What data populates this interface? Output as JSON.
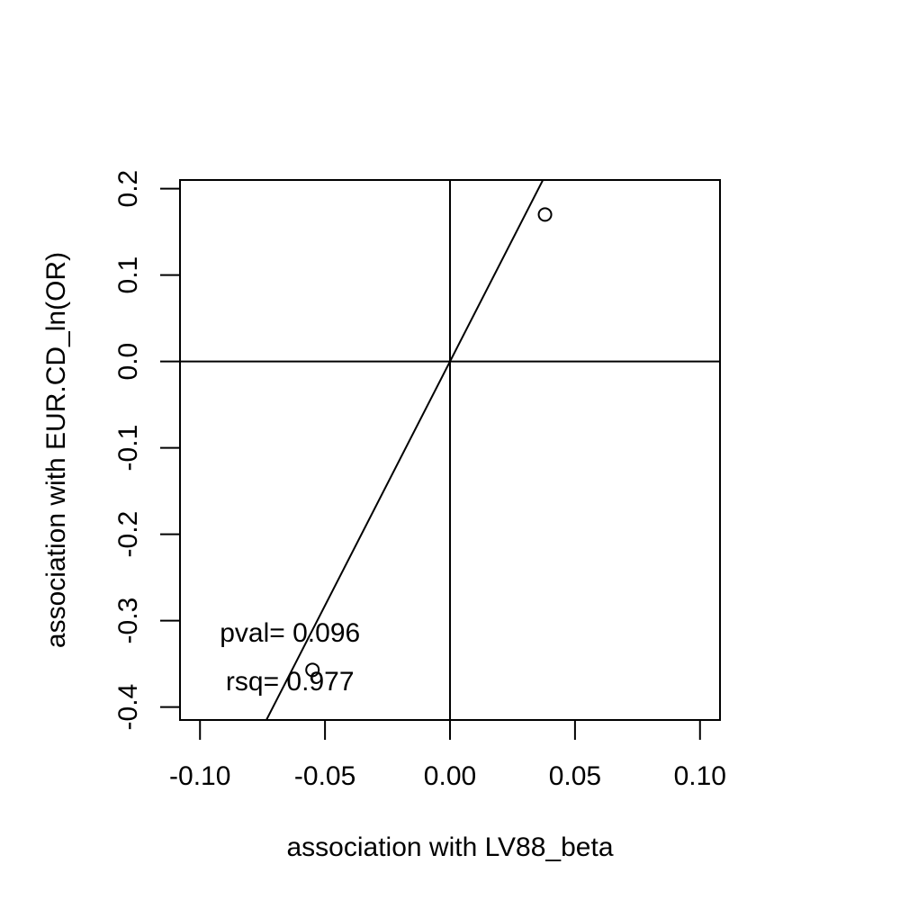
{
  "chart_data": {
    "type": "scatter",
    "title": "",
    "xlabel": "association with LV88_beta",
    "ylabel": "association with EUR.CD_ln(OR)",
    "xlim": [
      -0.108,
      0.108
    ],
    "ylim": [
      -0.415,
      0.21
    ],
    "x_ticks": [
      -0.1,
      -0.05,
      0.0,
      0.05,
      0.1
    ],
    "x_tick_labels": [
      "-0.10",
      "-0.05",
      "0.00",
      "0.05",
      "0.10"
    ],
    "y_ticks": [
      -0.4,
      -0.3,
      -0.2,
      -0.1,
      0.0,
      0.1,
      0.2
    ],
    "y_tick_labels": [
      "-0.4",
      "-0.3",
      "-0.2",
      "-0.1",
      "0.0",
      "0.1",
      "0.2"
    ],
    "points": [
      {
        "x": 0.038,
        "y": 0.17
      },
      {
        "x": -0.055,
        "y": -0.357
      }
    ],
    "reference_lines": {
      "horizontal": 0,
      "vertical": 0
    },
    "fit_line": {
      "intercept": 0,
      "slope": 5.65
    },
    "annotations": [
      {
        "text": "pval= 0.096",
        "x": -0.064,
        "y": -0.314
      },
      {
        "text": "rsq= 0.977",
        "x": -0.064,
        "y": -0.37
      }
    ],
    "grid": false,
    "legend": "none"
  }
}
